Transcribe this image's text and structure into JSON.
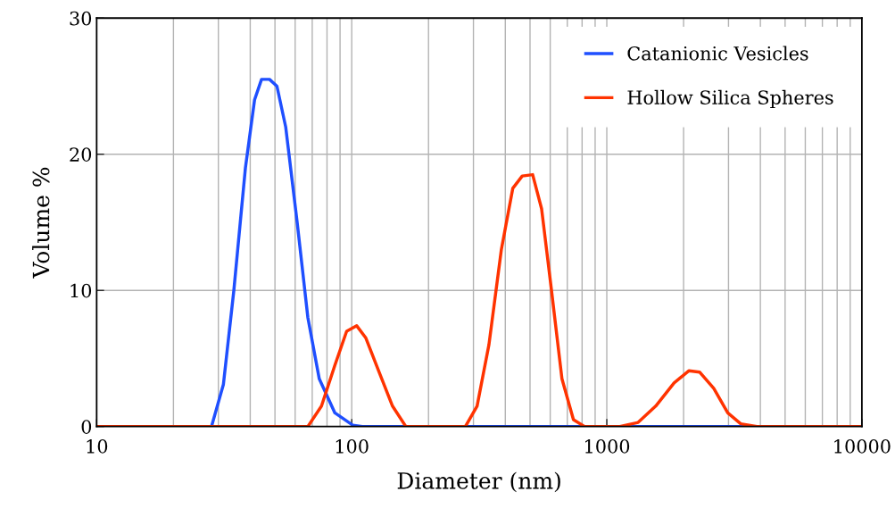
{
  "chart_data": {
    "type": "line",
    "xlabel": "Diameter (nm)",
    "ylabel": "Volume %",
    "log": "x",
    "xlim": [
      10,
      10000
    ],
    "xticks": [
      10,
      100,
      1000,
      10000
    ],
    "ylim": [
      0,
      30
    ],
    "yticks": [
      0,
      10,
      20,
      30
    ],
    "grid": true,
    "legend": "top right",
    "marker": "none",
    "line_style": "solid",
    "series": [
      {
        "name": "Catanionic Vesicles",
        "color": "#1f4fff",
        "x": [
          10,
          28.2,
          31.4,
          34.5,
          38.3,
          41.6,
          44.3,
          47.6,
          50.9,
          55.1,
          61.1,
          67.3,
          74.6,
          85.9,
          100.9,
          110,
          10000
        ],
        "values": [
          0,
          0,
          3.1,
          10,
          19,
          24,
          25.5,
          25.5,
          25,
          22,
          15,
          8,
          3.5,
          1,
          0.1,
          0,
          0
        ]
      },
      {
        "name": "Hollow Silica Spheres",
        "color": "#ff3300",
        "x": [
          10,
          67.3,
          76.1,
          85.9,
          95.5,
          104.6,
          113.6,
          128,
          144.5,
          163,
          279,
          310,
          345,
          386,
          428,
          466,
          512,
          555,
          607,
          667,
          740,
          818,
          1125,
          1327,
          1555,
          1835,
          2100,
          2310,
          2625,
          2980,
          3350,
          3880,
          10000
        ],
        "values": [
          0,
          0,
          1.5,
          4.5,
          7,
          7.4,
          6.5,
          4,
          1.5,
          0,
          0,
          1.5,
          6,
          13,
          17.5,
          18.4,
          18.5,
          16,
          10,
          3.5,
          0.5,
          0,
          0,
          0.3,
          1.5,
          3.2,
          4.1,
          4,
          2.8,
          1,
          0.2,
          0,
          0
        ]
      }
    ]
  }
}
